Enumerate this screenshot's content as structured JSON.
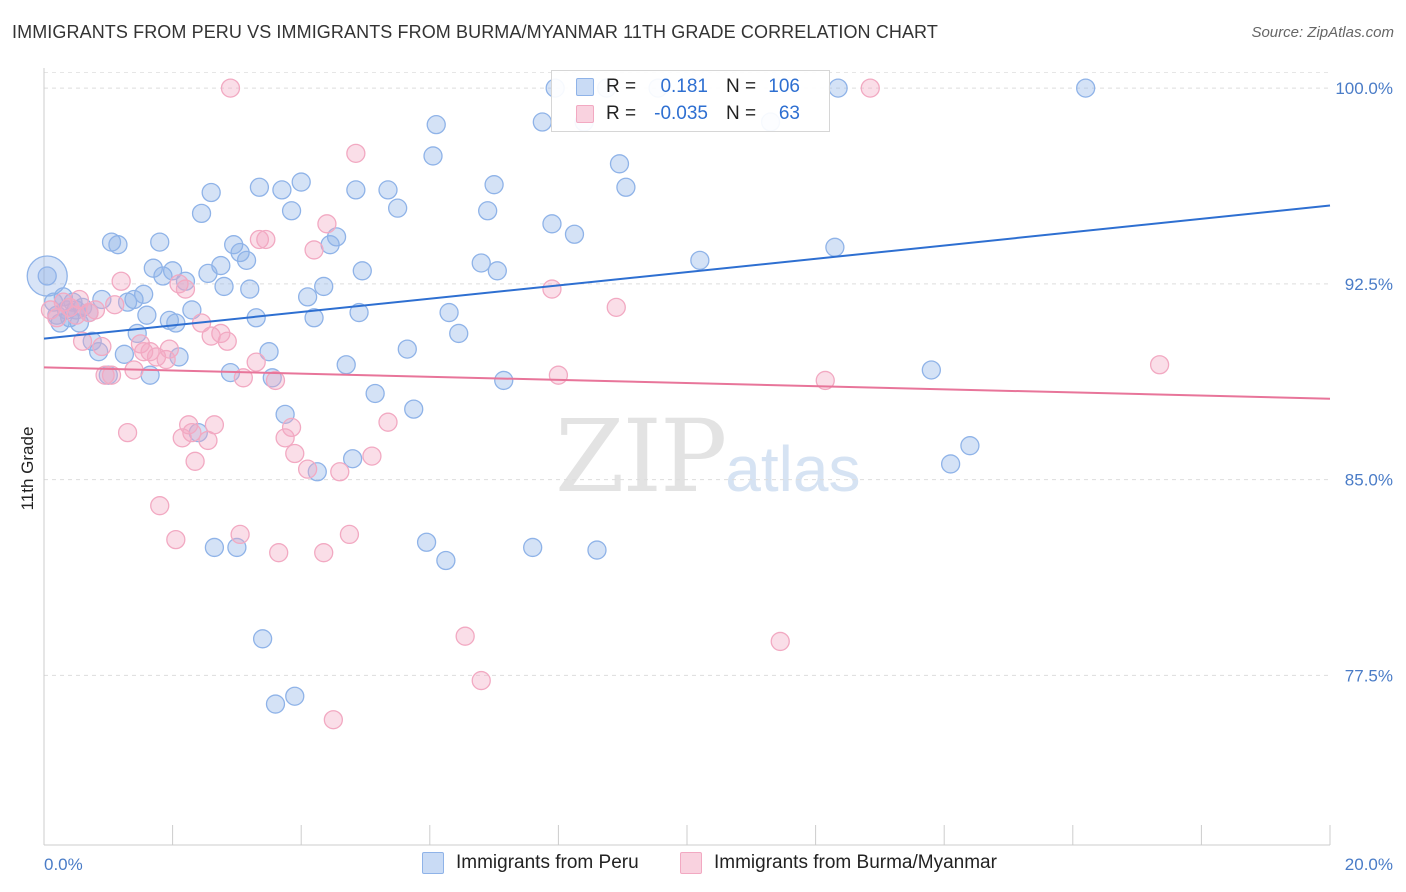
{
  "title": "IMMIGRANTS FROM PERU VS IMMIGRANTS FROM BURMA/MYANMAR 11TH GRADE CORRELATION CHART",
  "source": "Source: ZipAtlas.com",
  "watermark": {
    "zip": "ZIP",
    "atlas": "atlas"
  },
  "legend": {
    "rows": [
      {
        "r_label": "R =",
        "r_value": "0.181",
        "n_label": "N =",
        "n_value": "106",
        "color": "#8fb3e8"
      },
      {
        "r_label": "R =",
        "r_value": "-0.035",
        "n_label": "N =",
        "n_value": "63",
        "color": "#f2a9c2"
      }
    ]
  },
  "bottom_legend": [
    {
      "label": "Immigrants from Peru",
      "color": "#8fb3e8"
    },
    {
      "label": "Immigrants from Burma/Myanmar",
      "color": "#f2a9c2"
    }
  ],
  "chart_data": {
    "type": "scatter",
    "title": "IMMIGRANTS FROM PERU VS IMMIGRANTS FROM BURMA/MYANMAR 11TH GRADE CORRELATION CHART",
    "xlabel": "",
    "ylabel": "11th Grade",
    "xlim": [
      0,
      20
    ],
    "ylim": [
      71,
      101
    ],
    "x_tick_labels": [
      "0.0%",
      "20.0%"
    ],
    "x_tick_values": [
      0,
      20
    ],
    "y_tick_labels": [
      "77.5%",
      "85.0%",
      "92.5%",
      "100.0%"
    ],
    "y_tick_values": [
      77.5,
      85.0,
      92.5,
      100.0
    ],
    "grid": true,
    "legend_position": "top-center",
    "series": [
      {
        "name": "Immigrants from Peru",
        "color": "#4a7cc7",
        "fill": "#8fb3e8",
        "trend": {
          "x": [
            0,
            20
          ],
          "y": [
            90.4,
            95.5
          ],
          "color": "#2e6fd1"
        },
        "points": [
          [
            0.05,
            92.8
          ],
          [
            0.15,
            91.8
          ],
          [
            0.2,
            91.3
          ],
          [
            0.25,
            91.0
          ],
          [
            0.3,
            92.0
          ],
          [
            0.35,
            91.5
          ],
          [
            0.4,
            91.2
          ],
          [
            0.45,
            91.8
          ],
          [
            0.5,
            91.5
          ],
          [
            0.55,
            91.0
          ],
          [
            0.6,
            91.6
          ],
          [
            0.7,
            91.4
          ],
          [
            0.75,
            90.3
          ],
          [
            0.85,
            89.9
          ],
          [
            0.9,
            91.9
          ],
          [
            1.0,
            89.0
          ],
          [
            1.05,
            94.1
          ],
          [
            1.15,
            94.0
          ],
          [
            1.25,
            89.8
          ],
          [
            1.3,
            91.8
          ],
          [
            1.4,
            91.9
          ],
          [
            1.45,
            90.6
          ],
          [
            1.55,
            92.1
          ],
          [
            1.6,
            91.3
          ],
          [
            1.65,
            89.0
          ],
          [
            1.7,
            93.1
          ],
          [
            1.8,
            94.1
          ],
          [
            1.85,
            92.8
          ],
          [
            1.95,
            91.1
          ],
          [
            2.0,
            93.0
          ],
          [
            2.05,
            91.0
          ],
          [
            2.1,
            89.7
          ],
          [
            2.2,
            92.6
          ],
          [
            2.3,
            91.5
          ],
          [
            2.4,
            86.8
          ],
          [
            2.45,
            95.2
          ],
          [
            2.55,
            92.9
          ],
          [
            2.6,
            96.0
          ],
          [
            2.65,
            82.4
          ],
          [
            2.75,
            93.2
          ],
          [
            2.8,
            92.4
          ],
          [
            2.9,
            89.1
          ],
          [
            2.95,
            94.0
          ],
          [
            3.0,
            82.4
          ],
          [
            3.05,
            93.7
          ],
          [
            3.15,
            93.4
          ],
          [
            3.2,
            92.3
          ],
          [
            3.3,
            91.2
          ],
          [
            3.35,
            96.2
          ],
          [
            3.4,
            78.9
          ],
          [
            3.5,
            89.9
          ],
          [
            3.55,
            88.9
          ],
          [
            3.6,
            76.4
          ],
          [
            3.7,
            96.1
          ],
          [
            3.75,
            87.5
          ],
          [
            3.85,
            95.3
          ],
          [
            3.9,
            76.7
          ],
          [
            4.0,
            96.4
          ],
          [
            4.1,
            92.0
          ],
          [
            4.2,
            91.2
          ],
          [
            4.25,
            85.3
          ],
          [
            4.35,
            92.4
          ],
          [
            4.45,
            94.0
          ],
          [
            4.55,
            94.3
          ],
          [
            4.7,
            89.4
          ],
          [
            4.8,
            85.8
          ],
          [
            4.85,
            96.1
          ],
          [
            4.9,
            91.4
          ],
          [
            4.95,
            93.0
          ],
          [
            5.15,
            88.3
          ],
          [
            5.35,
            96.1
          ],
          [
            5.5,
            95.4
          ],
          [
            5.65,
            90.0
          ],
          [
            5.75,
            87.7
          ],
          [
            5.95,
            82.6
          ],
          [
            6.05,
            97.4
          ],
          [
            6.1,
            98.6
          ],
          [
            6.25,
            81.9
          ],
          [
            6.3,
            91.4
          ],
          [
            6.45,
            90.6
          ],
          [
            6.8,
            93.3
          ],
          [
            6.9,
            95.3
          ],
          [
            7.0,
            96.3
          ],
          [
            7.05,
            93.0
          ],
          [
            7.15,
            88.8
          ],
          [
            7.6,
            82.4
          ],
          [
            7.75,
            98.7
          ],
          [
            7.9,
            94.8
          ],
          [
            7.95,
            100.0
          ],
          [
            8.25,
            94.4
          ],
          [
            8.4,
            98.7
          ],
          [
            8.6,
            82.3
          ],
          [
            8.75,
            100.0
          ],
          [
            8.95,
            97.1
          ],
          [
            9.05,
            96.2
          ],
          [
            9.55,
            100.0
          ],
          [
            10.2,
            93.4
          ],
          [
            11.3,
            98.7
          ],
          [
            12.3,
            93.9
          ],
          [
            12.35,
            100.0
          ],
          [
            13.8,
            89.2
          ],
          [
            14.1,
            85.6
          ],
          [
            14.4,
            86.3
          ],
          [
            16.2,
            100.0
          ]
        ]
      },
      {
        "name": "Immigrants from Burma/Myanmar",
        "color": "#e88aaa",
        "fill": "#f2a9c2",
        "trend": {
          "x": [
            0,
            20
          ],
          "y": [
            89.3,
            88.1
          ],
          "color": "#e8759a"
        },
        "points": [
          [
            0.1,
            91.5
          ],
          [
            0.2,
            91.2
          ],
          [
            0.3,
            91.8
          ],
          [
            0.4,
            91.6
          ],
          [
            0.5,
            91.3
          ],
          [
            0.55,
            91.9
          ],
          [
            0.6,
            90.3
          ],
          [
            0.7,
            91.4
          ],
          [
            0.8,
            91.5
          ],
          [
            0.9,
            90.1
          ],
          [
            0.95,
            89.0
          ],
          [
            1.05,
            89.0
          ],
          [
            1.1,
            91.7
          ],
          [
            1.2,
            92.6
          ],
          [
            1.3,
            86.8
          ],
          [
            1.4,
            89.2
          ],
          [
            1.5,
            90.2
          ],
          [
            1.55,
            89.9
          ],
          [
            1.65,
            89.9
          ],
          [
            1.75,
            89.7
          ],
          [
            1.8,
            84.0
          ],
          [
            1.9,
            89.6
          ],
          [
            1.95,
            90.0
          ],
          [
            2.05,
            82.7
          ],
          [
            2.1,
            92.5
          ],
          [
            2.15,
            86.6
          ],
          [
            2.2,
            92.3
          ],
          [
            2.25,
            87.1
          ],
          [
            2.3,
            86.8
          ],
          [
            2.35,
            85.7
          ],
          [
            2.45,
            91.0
          ],
          [
            2.55,
            86.5
          ],
          [
            2.6,
            90.5
          ],
          [
            2.65,
            87.1
          ],
          [
            2.75,
            90.6
          ],
          [
            2.85,
            90.3
          ],
          [
            3.05,
            82.9
          ],
          [
            3.1,
            88.9
          ],
          [
            3.3,
            89.5
          ],
          [
            3.35,
            94.2
          ],
          [
            3.45,
            94.2
          ],
          [
            3.6,
            88.8
          ],
          [
            3.65,
            82.2
          ],
          [
            3.75,
            86.6
          ],
          [
            3.85,
            87.0
          ],
          [
            3.9,
            86.0
          ],
          [
            4.1,
            85.4
          ],
          [
            4.2,
            93.8
          ],
          [
            4.35,
            82.2
          ],
          [
            4.4,
            94.8
          ],
          [
            4.5,
            75.8
          ],
          [
            4.6,
            85.3
          ],
          [
            4.75,
            82.9
          ],
          [
            4.85,
            97.5
          ],
          [
            5.1,
            85.9
          ],
          [
            5.35,
            87.2
          ],
          [
            6.55,
            79.0
          ],
          [
            6.8,
            77.3
          ],
          [
            7.9,
            92.3
          ],
          [
            8.0,
            89.0
          ],
          [
            8.9,
            91.6
          ],
          [
            11.45,
            78.8
          ],
          [
            12.15,
            88.8
          ],
          [
            12.85,
            100.0
          ],
          [
            17.35,
            89.4
          ],
          [
            2.9,
            100.0
          ]
        ]
      }
    ]
  }
}
